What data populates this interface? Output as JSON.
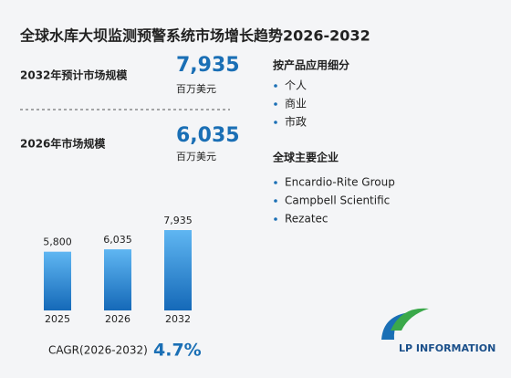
{
  "title": "全球水库大坝监测预警系统市场增长趋势2026-2032",
  "summary": [
    {
      "label": "2032年预计市场规模",
      "value": "7,935",
      "unit": "百万美元"
    },
    {
      "label": "2026年市场规模",
      "value": "6,035",
      "unit": "百万美元"
    }
  ],
  "segments": {
    "title": "按产品应用细分",
    "items": [
      "个人",
      "商业",
      "市政"
    ]
  },
  "companies": {
    "title": "全球主要企业",
    "items": [
      "Encardio-Rite Group",
      "Campbell Scientific",
      "Rezatec"
    ]
  },
  "chart_data": {
    "type": "bar",
    "categories": [
      "2025",
      "2026",
      "2032"
    ],
    "values": [
      5800,
      6035,
      7935
    ],
    "value_labels": [
      "5,800",
      "6,035",
      "7,935"
    ],
    "color": "#1a7fd4"
  },
  "cagr": {
    "label": "CAGR(2026-2032)",
    "value": "4.7%"
  },
  "logo": "LP INFORMATION"
}
